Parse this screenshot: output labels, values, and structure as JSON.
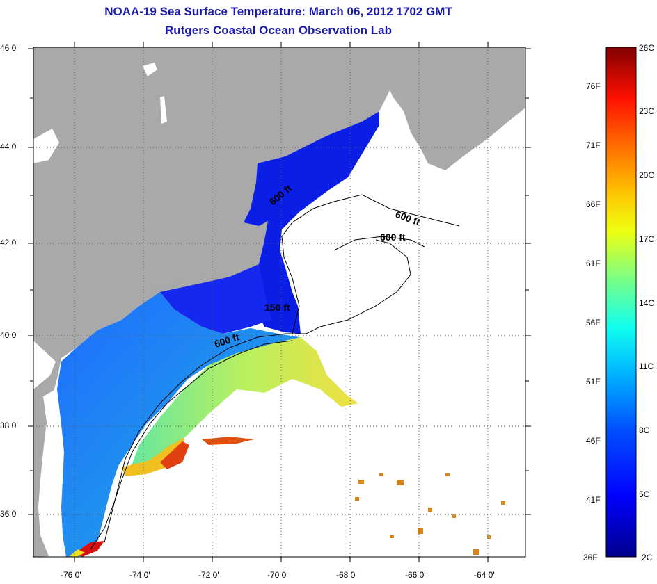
{
  "title": {
    "line1": "NOAA-19 Sea Surface Temperature:  March 06, 2012 1702 GMT",
    "line2": "Rutgers Coastal Ocean Observation Lab"
  },
  "axes": {
    "lat_labels": [
      "46 0'",
      "44 0'",
      "42 0'",
      "40 0'",
      "38 0'",
      "36 0'"
    ],
    "lon_labels": [
      "-76 0'",
      "-74 0'",
      "-72 0'",
      "-70 0'",
      "-68 0'",
      "-66 0'",
      "-64 0'"
    ]
  },
  "contours": {
    "labels": [
      "600 ft",
      "600 ft",
      "600 ft",
      "150 ft",
      "600 ft"
    ]
  },
  "colorbar": {
    "fahrenheit": [
      "76F",
      "71F",
      "66F",
      "61F",
      "56F",
      "51F",
      "46F",
      "41F",
      "36F"
    ],
    "celsius": [
      "26C",
      "23C",
      "20C",
      "17C",
      "14C",
      "11C",
      "8C",
      "5C",
      "2C"
    ]
  },
  "colors": {
    "land": "#a9a9a9",
    "ocean_nodata": "#ffffff",
    "title": "#1a1aa8",
    "cold": "#0000c8",
    "warm": "#c81000"
  }
}
